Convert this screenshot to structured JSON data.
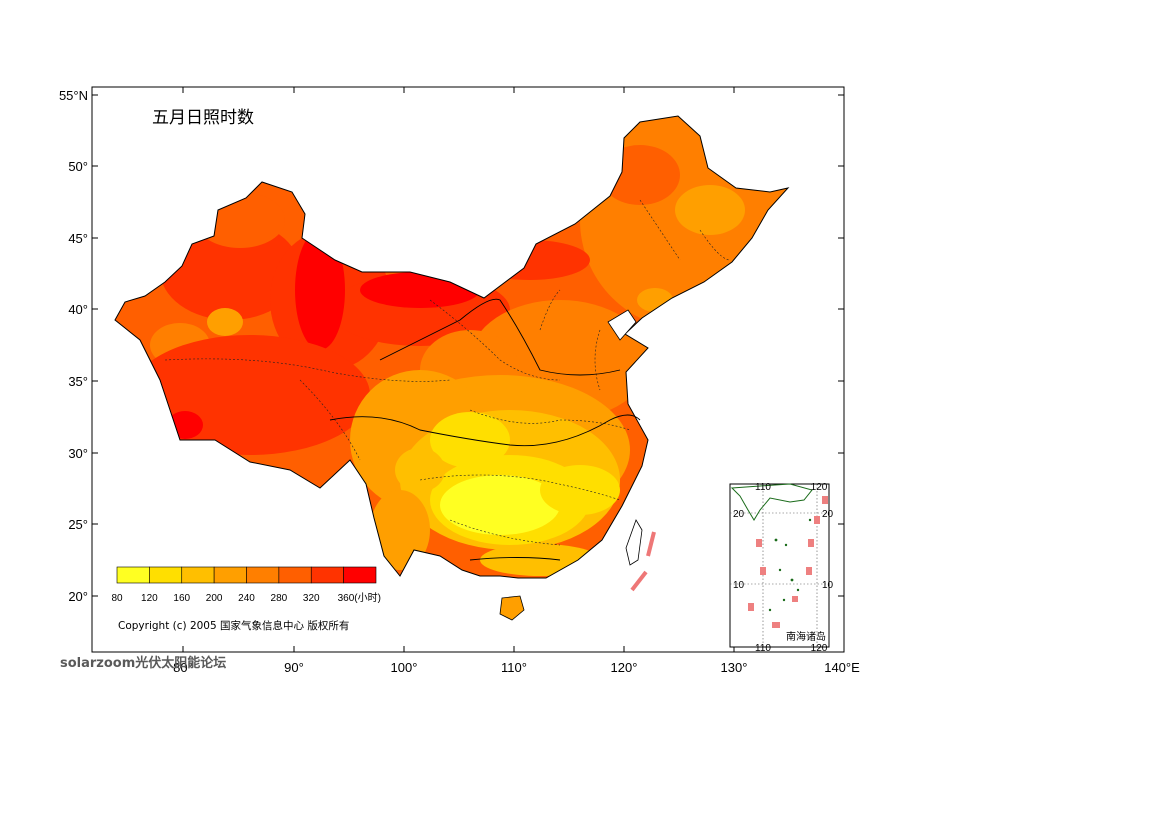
{
  "map": {
    "title": "五月日照时数",
    "lat_labels": [
      "55°N",
      "50°",
      "45°",
      "40°",
      "35°",
      "30°",
      "25°",
      "20°"
    ],
    "lon_labels": [
      "80°",
      "90°",
      "100°",
      "110°",
      "120°",
      "130°",
      "140°E"
    ],
    "legend": {
      "values": [
        "80",
        "120",
        "160",
        "200",
        "240",
        "280",
        "320",
        "360(小时)"
      ],
      "colors": [
        "#ffff22",
        "#ffdf00",
        "#ffbf00",
        "#ff9f00",
        "#ff7f00",
        "#ff5f00",
        "#ff3300",
        "#ff0000"
      ]
    },
    "copyright": "Copyright (c) 2005 国家气象信息中心 版权所有",
    "inset": {
      "caption": "南海诸岛",
      "top_lon_labels": [
        "110",
        "120"
      ],
      "bottom_lon_labels": [
        "110",
        "120"
      ],
      "left_lat_labels": [
        "20",
        "10"
      ],
      "right_lat_labels": [
        "20",
        "10"
      ]
    },
    "watermark": "solarzoom光伏太阳能论坛"
  }
}
